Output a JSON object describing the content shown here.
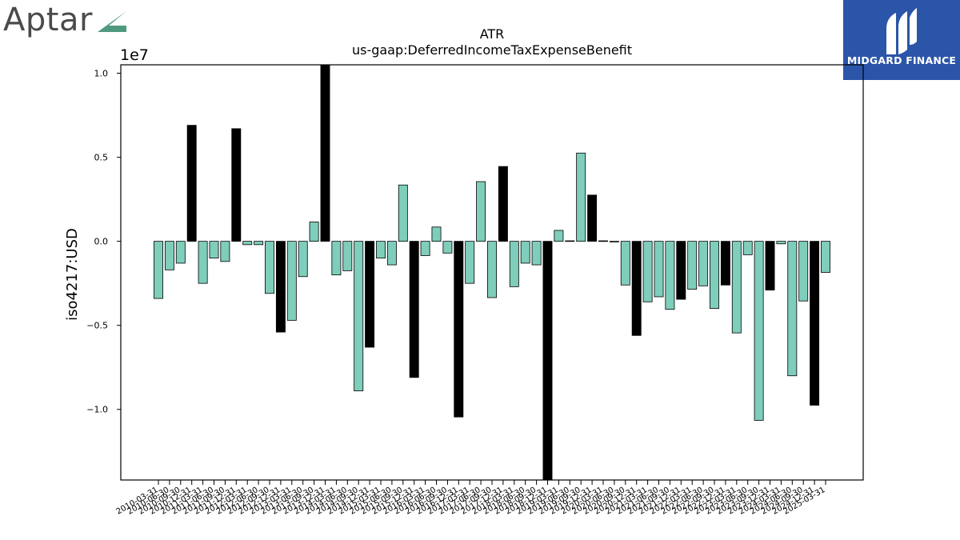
{
  "logo": {
    "text": "Aptar",
    "accent_color": "#4f9a7f"
  },
  "watermark": {
    "text": "MIDGARD FINANCE",
    "background": "#2b55a8"
  },
  "chart_data": {
    "type": "bar",
    "title": "ATR",
    "subtitle": "us-gaap:DeferredIncomeTaxExpenseBenefit",
    "ylabel": "iso4217:USD",
    "xlabel": "",
    "y_offset_label": "1e7",
    "ylim": [
      -14200000,
      10500000
    ],
    "y_ticks": [
      -10000000,
      -5000000,
      0,
      5000000,
      10000000
    ],
    "y_tick_labels": [
      "−1.0",
      "−0.5",
      "0.0",
      "0.5",
      "1.0"
    ],
    "colors": {
      "quarterly": "#7fcdbb",
      "annual": "#000000"
    },
    "categories": [
      "2010-03-31",
      "2010-06-30",
      "2010-09-30",
      "2010-12-31",
      "2011-03-31",
      "2011-06-30",
      "2011-09-30",
      "2011-12-31",
      "2012-03-31",
      "2012-06-30",
      "2012-09-30",
      "2012-12-31",
      "2013-03-31",
      "2013-06-30",
      "2013-09-30",
      "2013-12-31",
      "2014-03-31",
      "2014-06-30",
      "2014-09-30",
      "2014-12-31",
      "2015-03-31",
      "2015-06-30",
      "2015-09-30",
      "2015-12-31",
      "2016-03-31",
      "2016-06-30",
      "2016-09-30",
      "2016-12-31",
      "2017-03-31",
      "2017-06-30",
      "2017-09-30",
      "2017-12-31",
      "2018-03-31",
      "2018-06-30",
      "2018-09-30",
      "2018-12-31",
      "2019-03-31",
      "2019-06-30",
      "2019-09-30",
      "2019-12-31",
      "2020-03-31",
      "2020-06-30",
      "2020-09-30",
      "2020-12-31",
      "2021-03-31",
      "2021-06-30",
      "2021-09-30",
      "2021-12-31",
      "2022-03-31",
      "2022-06-30",
      "2022-09-30",
      "2022-12-31",
      "2023-03-31",
      "2023-06-30",
      "2023-09-30",
      "2023-12-31",
      "2024-03-31",
      "2024-06-30",
      "2024-09-30",
      "2024-12-31",
      "2025-03-31"
    ],
    "x_tick_labels": [
      "2010-03-31",
      "2010-06-30",
      "2010-09-30",
      "2010-12-31",
      "2011-03-31",
      "2011-06-30",
      "2011-09-30",
      "2011-12-31",
      "2012-03-31",
      "2012-06-30",
      "2012-09-30",
      "2012-12-31",
      "2013-03-31",
      "2013-06-30",
      "2013-09-30",
      "2013-12-31",
      "2014-03-31",
      "2014-06-30",
      "2014-09-30",
      "2014-12-31",
      "2015-03-31",
      "2015-06-30",
      "2015-09-30",
      "2015-12-31",
      "2016-03-31",
      "2016-06-30",
      "2016-09-30",
      "2016-12-31",
      "2017-03-31",
      "2017-06-30",
      "2017-09-30",
      "2017-12-31",
      "2018-03-31",
      "2018-06-30",
      "2018-09-30",
      "2018-12-31",
      "2019-03-31",
      "2019-06-30",
      "2019-09-30",
      "2019-12-31",
      "2020-03-31",
      "2020-06-30",
      "2020-09-30",
      "2020-12-31",
      "2021-03-31",
      "2021-06-30",
      "2021-09-30",
      "2021-12-31",
      "2022-03-31",
      "2022-06-30",
      "2022-09-30",
      "2022-12-31",
      "2023-03-31",
      "2023-06-30",
      "2023-09-30",
      "2023-12-31",
      "2024-03-31",
      "2024-06-30",
      "2024-09-30",
      "2024-12-31",
      "2025-03-31"
    ],
    "series": [
      {
        "values": [
          -3400000,
          -1700000,
          -1300000,
          6900000,
          -2500000,
          -1000000,
          -1200000,
          6700000,
          -200000,
          -200000,
          -3100000,
          -5400000,
          -4700000,
          -2100000,
          1150000,
          10500000,
          -2000000,
          -1750000,
          -8900000,
          -6300000,
          -1000000,
          -1400000,
          3350000,
          -8100000,
          -850000,
          850000,
          -700000,
          -10450000,
          -2500000,
          3550000,
          -3350000,
          4450000,
          -2700000,
          -1300000,
          -1400000,
          -14200000,
          650000,
          30000,
          5250000,
          2750000,
          30000,
          0,
          -2600000,
          -5600000,
          -3600000,
          -3300000,
          -4050000,
          -3450000,
          -2850000,
          -2650000,
          -4000000,
          -2600000,
          -5450000,
          -800000,
          -10650000,
          -2900000,
          -150000,
          -8000000,
          -3550000,
          -9750000,
          -1850000
        ],
        "bar_types": [
          "q",
          "q",
          "q",
          "a",
          "q",
          "q",
          "q",
          "a",
          "q",
          "q",
          "q",
          "a",
          "q",
          "q",
          "q",
          "a",
          "q",
          "q",
          "q",
          "a",
          "q",
          "q",
          "q",
          "a",
          "q",
          "q",
          "q",
          "a",
          "q",
          "q",
          "q",
          "a",
          "q",
          "q",
          "q",
          "a",
          "q",
          "q",
          "q",
          "a",
          "q",
          "q",
          "q",
          "a",
          "q",
          "q",
          "q",
          "a",
          "q",
          "q",
          "q",
          "a",
          "q",
          "q",
          "q",
          "a",
          "q",
          "q",
          "q",
          "a",
          "q"
        ]
      }
    ]
  }
}
